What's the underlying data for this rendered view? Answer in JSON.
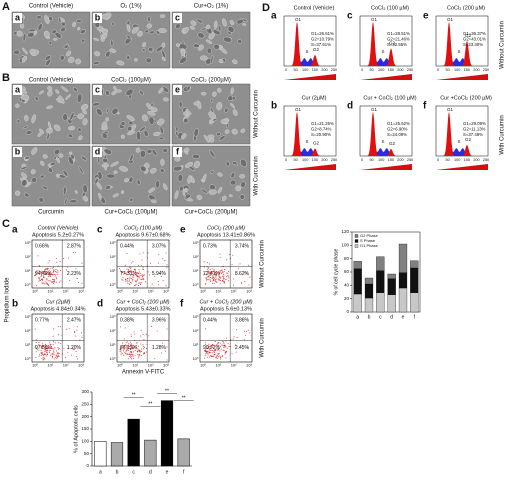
{
  "panel_a": {
    "label": "A",
    "panels": [
      {
        "letter": "a",
        "caption": "Control (Vehicle)"
      },
      {
        "letter": "b",
        "caption": "O₂ (1%)"
      },
      {
        "letter": "c",
        "caption": "Cur+O₂ (1%)"
      }
    ]
  },
  "panel_b": {
    "label": "B",
    "headers": [
      "Control (Vehicle)",
      "CoCl₂ (100µM)",
      "CoCl₂ (200µM)"
    ],
    "top_letters": [
      "a",
      "c",
      "e"
    ],
    "bottom_letters": [
      "b",
      "d",
      "f"
    ],
    "bottom_captions": [
      "Curcumin",
      "Cur+CoCl₂ (100µM)",
      "Cur+CoCl₂ (200µM)"
    ],
    "row_labels": [
      "Without Curcumin",
      "With Curcumin"
    ]
  },
  "panel_c": {
    "label": "C",
    "plots": [
      {
        "letter": "a",
        "title": "Control (Vehicle)",
        "apoptosis": "Apoptosis 5.2±0.27%",
        "quadrants": [
          "0.66%",
          "2.87%",
          "94.40%",
          "2.23%"
        ]
      },
      {
        "letter": "c",
        "title": "CoCl₂ (100 µM)",
        "apoptosis": "Apoptosis 9.67±0.68%",
        "quadrants": [
          "0.44%",
          "3.07%",
          "77.31%",
          "5.94%"
        ]
      },
      {
        "letter": "e",
        "title": "CoCl₂ (200 µM)",
        "apoptosis": "Apoptosis 13.41±0.86%",
        "quadrants": [
          "0.73%",
          "3.74%",
          "72.41%",
          "8.62%"
        ]
      },
      {
        "letter": "b",
        "title": "Cur (2µM)",
        "apoptosis": "Apoptosis 4.84±0.34%",
        "quadrants": [
          "0.77%",
          "2.47%",
          "97.56%",
          "1.20%"
        ]
      },
      {
        "letter": "d",
        "title": "Cur + CoCl₂ (100 µM)",
        "apoptosis": "Apoptosis 5.43±0.33%",
        "quadrants": [
          "0.38%",
          "3.96%",
          "66.12%",
          "1.28%"
        ]
      },
      {
        "letter": "f",
        "title": "Cur + CoCl₂ (200 µM)",
        "apoptosis": "Apoptosis 5.6±0.13%",
        "quadrants": [
          "0.44%",
          "3.86%",
          "90.72%",
          "2.45%"
        ]
      }
    ],
    "ticks": [
      "10⁰",
      "10¹",
      "10²",
      "10³"
    ],
    "y_label": "Propidium Iodide",
    "x_label": "Annexin V-FITC",
    "row_labels": [
      "Without Curcumin",
      "With Curcumin"
    ]
  },
  "apoptosis_chart": {
    "type": "bar",
    "y_label": "% of Apoptotic cells",
    "categories": [
      "a",
      "b",
      "c",
      "d",
      "e",
      "f"
    ],
    "values": [
      100,
      95,
      190,
      105,
      265,
      110
    ],
    "colors": [
      "#ffffff",
      "#aaaaaa",
      "#000000",
      "#aaaaaa",
      "#000000",
      "#aaaaaa"
    ],
    "ylim": [
      0,
      300
    ],
    "yticks": [
      0,
      50,
      100,
      150,
      200,
      250,
      300
    ],
    "annotations": [
      "**",
      "**",
      "**",
      "**"
    ]
  },
  "panel_d": {
    "label": "D",
    "plots": [
      {
        "letter": "a",
        "title": "Control (Vehicle)",
        "stats": [
          "G1=26.61%",
          "G2=10.79%",
          "S=37.61%"
        ]
      },
      {
        "letter": "c",
        "title": "CoCl₂ (100 µM)",
        "stats": [
          "G1=28.51%",
          "G2=21.46%",
          "S=32.55%"
        ]
      },
      {
        "letter": "e",
        "title": "CoCl₂ (200 µM)",
        "stats": [
          "G1=36.37%",
          "G2=43.01%",
          "S=23.30%"
        ]
      },
      {
        "letter": "b",
        "title": "Cur (2µM)",
        "stats": [
          "G1=21.26%",
          "G2=8.74%",
          "S=20.90%"
        ]
      },
      {
        "letter": "d",
        "title": "Cur + CoCl₂ (100 µM)",
        "stats": [
          "G1=25.62%",
          "G2=6.90%",
          "S=24.09%"
        ]
      },
      {
        "letter": "f",
        "title": "Cur +CoCl₂ (200 µM)",
        "stats": [
          "G1=29.09%",
          "G2=11.13%",
          "S=37.48%"
        ]
      }
    ],
    "phase_labels": [
      "G1",
      "S",
      "G2"
    ],
    "x_ticks": [
      "0",
      "50",
      "100",
      "150",
      "200",
      "250"
    ],
    "row_labels": [
      "Without Curcumin",
      "With Curcumin"
    ]
  },
  "cell_cycle_chart": {
    "type": "stacked_bar",
    "y_label": "% of cell cycle phase",
    "categories": [
      "a",
      "b",
      "c",
      "d",
      "e",
      "f"
    ],
    "series": [
      {
        "name": "G1 Phase",
        "color": "#c8c8c8",
        "values": [
          27,
          21,
          29,
          26,
          36,
          29
        ]
      },
      {
        "name": "S Phase",
        "color": "#111111",
        "values": [
          38,
          21,
          33,
          24,
          23,
          37
        ]
      },
      {
        "name": "G2 Phase",
        "color": "#808080",
        "values": [
          11,
          9,
          21,
          7,
          43,
          11
        ]
      }
    ],
    "ylim": [
      0,
      120
    ],
    "yticks": [
      0,
      20,
      40,
      60,
      80,
      100,
      120
    ]
  }
}
